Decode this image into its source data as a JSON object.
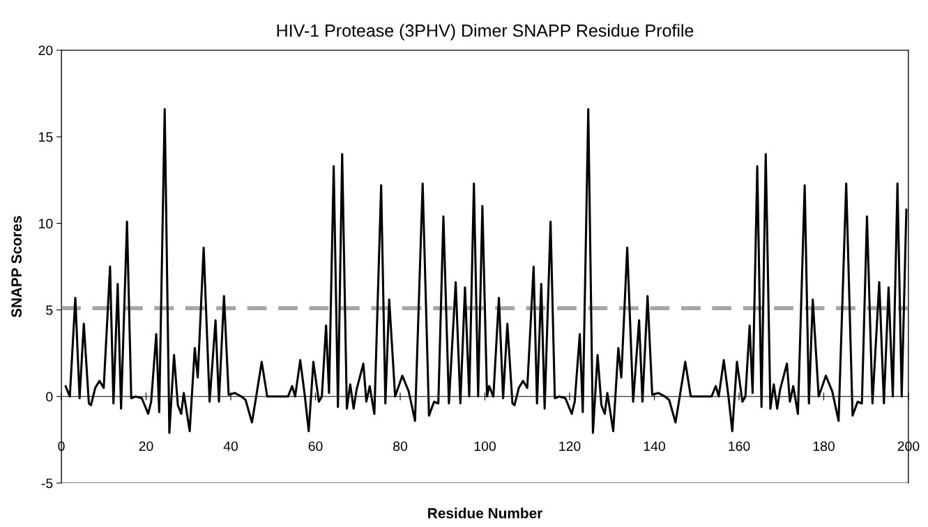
{
  "chart_data": {
    "type": "line",
    "title": "HIV-1 Protease (3PHV) Dimer SNAPP Residue Profile",
    "xlabel": "Residue Number",
    "ylabel": "SNAPP Scores",
    "xlim": [
      0,
      200
    ],
    "xticks": [
      0,
      20,
      40,
      60,
      80,
      100,
      120,
      140,
      160,
      180,
      200
    ],
    "ylim": [
      -5,
      20
    ],
    "yticks": [
      -5,
      0,
      5,
      10,
      15,
      20
    ],
    "grid": false,
    "marker": "none",
    "line_style": "solid",
    "ref_lines": [
      {
        "axis": "y",
        "value": 5.1,
        "color": "#a6a6a6",
        "line_style": "dashed"
      }
    ],
    "series": [
      {
        "color": "#000000",
        "x": [
          1,
          2,
          3.3,
          4.3,
          5.3,
          6.5,
          7,
          8,
          9,
          10,
          11.5,
          12.3,
          13.3,
          14.1,
          15.5,
          16.5,
          17.5,
          19,
          20.5,
          21.2,
          22.4,
          23.1,
          24.4,
          25.5,
          26.6,
          27.5,
          28.3,
          28.9,
          30.3,
          31.5,
          32.2,
          33.6,
          35,
          36.4,
          37.2,
          38.4,
          39.5,
          41,
          42.5,
          43.5,
          45,
          46,
          47.3,
          48.6,
          53.5,
          54.5,
          55.2,
          56.4,
          57.5,
          58.4,
          59.5,
          60.8,
          61.5,
          62.5,
          63.2,
          64.3,
          65.3,
          66.3,
          67.4,
          68.2,
          69,
          69.7,
          71.3,
          72,
          72.8,
          73.9,
          75.5,
          76.5,
          77.4,
          78.8,
          80.5,
          82,
          83.5,
          85.3,
          86.8,
          88,
          89,
          90.2,
          91.5,
          93.1,
          94.2,
          95.3,
          96.3,
          97.4,
          98.4,
          99.4,
          100.5,
          101,
          102,
          103.3,
          104.3,
          105.3,
          106.5,
          107,
          108,
          109,
          110,
          111.5,
          112.3,
          113.3,
          114.1,
          115.5,
          116.5,
          117.5,
          119,
          120.5,
          121.2,
          122.4,
          123.1,
          124.4,
          125.5,
          126.6,
          127.5,
          128.3,
          128.9,
          130.3,
          131.5,
          132.2,
          133.6,
          135,
          136.4,
          137.2,
          138.4,
          139.5,
          141,
          142.5,
          143.5,
          145,
          146,
          147.3,
          148.6,
          153.5,
          154.5,
          155.2,
          156.4,
          157.5,
          158.4,
          159.5,
          160.8,
          161.5,
          162.5,
          163.2,
          164.3,
          165.3,
          166.3,
          167.4,
          168.2,
          169,
          169.7,
          171.3,
          172,
          172.8,
          173.9,
          175.5,
          176.5,
          177.4,
          178.8,
          180.5,
          182,
          183.5,
          185.3,
          186.8,
          188,
          189,
          190.2,
          191.5,
          193.1,
          194.2,
          195.3,
          196.3,
          197.4,
          198.4,
          199.5
        ],
        "values": [
          0.6,
          0,
          5.7,
          -0.1,
          4.2,
          -0.4,
          -0.5,
          0.5,
          0.9,
          0.5,
          7.5,
          -0.4,
          6.5,
          -0.7,
          10.1,
          -0.1,
          0,
          -0.1,
          -1,
          -0.3,
          3.6,
          -0.9,
          16.6,
          -2.1,
          2.4,
          -0.5,
          -1,
          0.2,
          -2,
          2.8,
          1.1,
          8.6,
          -0.3,
          4.4,
          -0.3,
          5.8,
          0.1,
          0.2,
          0,
          -0.2,
          -1.5,
          0,
          2,
          0,
          0,
          0.6,
          0,
          2.1,
          0,
          -2,
          2,
          -0.3,
          0,
          4.1,
          0.2,
          13.3,
          -0.6,
          14,
          -0.7,
          0.7,
          -0.7,
          0.4,
          1.9,
          -0.3,
          0.6,
          -1,
          12.2,
          -0.4,
          5.6,
          0,
          1.2,
          0.3,
          -1.4,
          12.3,
          -1.1,
          -0.3,
          -0.4,
          10.4,
          -0.4,
          6.6,
          -0.4,
          6.3,
          0,
          12.3,
          0,
          11,
          0,
          0.6,
          0,
          5.7,
          -0.1,
          4.2,
          -0.4,
          -0.5,
          0.5,
          0.9,
          0.5,
          7.5,
          -0.4,
          6.5,
          -0.7,
          10.1,
          -0.1,
          0,
          -0.1,
          -1,
          -0.3,
          3.6,
          -0.9,
          16.6,
          -2.1,
          2.4,
          -0.5,
          -1,
          0.2,
          -2,
          2.8,
          1.1,
          8.6,
          -0.3,
          4.4,
          -0.3,
          5.8,
          0.1,
          0.2,
          0,
          -0.2,
          -1.5,
          0,
          2,
          0,
          0,
          0.6,
          0,
          2.1,
          0,
          -2,
          2,
          -0.3,
          0,
          4.1,
          0.2,
          13.3,
          -0.6,
          14,
          -0.7,
          0.7,
          -0.7,
          0.4,
          1.9,
          -0.3,
          0.6,
          -1,
          12.2,
          -0.4,
          5.6,
          0,
          1.2,
          0.3,
          -1.4,
          12.3,
          -1.1,
          -0.3,
          -0.4,
          10.4,
          -0.4,
          6.6,
          -0.4,
          6.3,
          0,
          12.3,
          0,
          10.8
        ]
      }
    ]
  }
}
